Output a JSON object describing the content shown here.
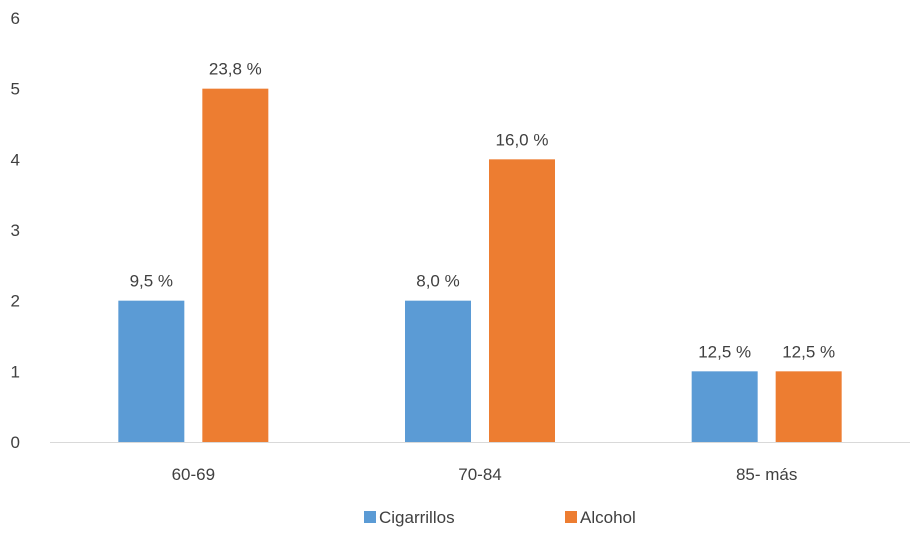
{
  "chart_data": {
    "type": "bar",
    "categories": [
      "60-69",
      "70-84",
      "85- más"
    ],
    "series": [
      {
        "name": "Cigarrillos",
        "values": [
          2,
          2,
          1
        ],
        "labels": [
          "9,5 %",
          "8,0 %",
          "12,5 %"
        ],
        "color": "#5b9bd5"
      },
      {
        "name": "Alcohol",
        "values": [
          5,
          4,
          1
        ],
        "labels": [
          "23,8 %",
          "16,0 %",
          "12,5 %"
        ],
        "color": "#ed7d31"
      }
    ],
    "yticks": [
      "0",
      "1",
      "2",
      "3",
      "4",
      "5",
      "6"
    ],
    "ylim": [
      0,
      6
    ],
    "grid": false,
    "legend_position": "bottom",
    "axis_color": "#d9d9d9"
  }
}
